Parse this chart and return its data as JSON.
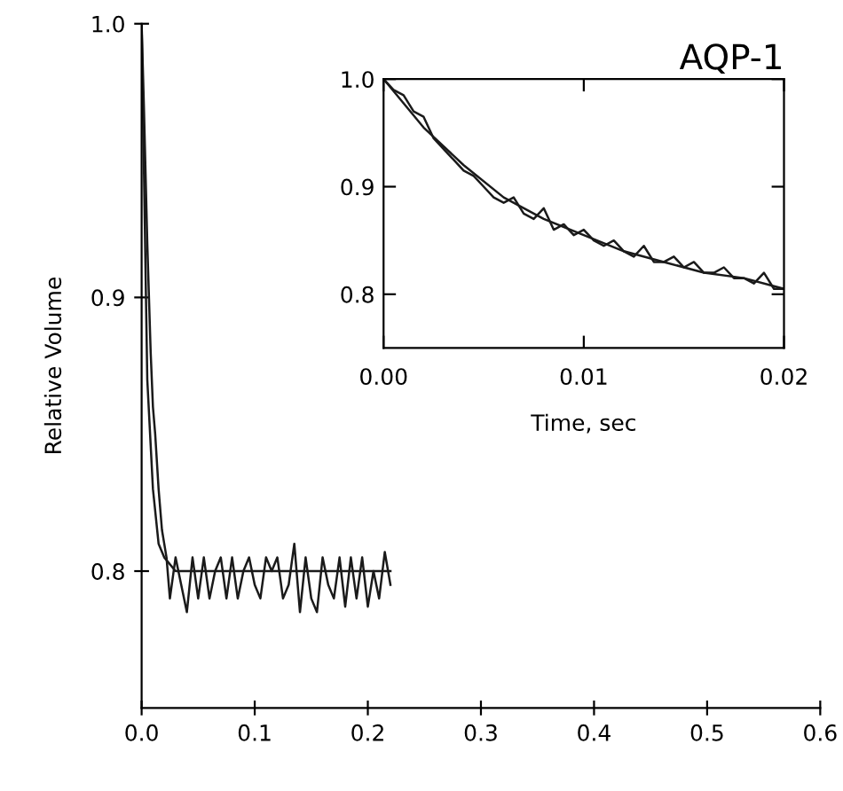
{
  "chart_data": [
    {
      "type": "line",
      "ylabel": "Relative Volume",
      "xlim": [
        0,
        0.6
      ],
      "ylim": [
        0.75,
        1.0
      ],
      "xticks": [
        {
          "value": 0,
          "label": "0.0"
        },
        0.1,
        0.2,
        0.3,
        0.4,
        0.5,
        0.6
      ],
      "yticks": [
        {
          "value": 0.8,
          "label": "0.8"
        },
        {
          "value": 0.9,
          "label": "0.9"
        },
        {
          "value": 1.0,
          "label": "1.0"
        }
      ],
      "grid": false,
      "legend": false,
      "series": [
        {
          "color": "#1a1a1a",
          "x": [
            0,
            0.002,
            0.005,
            0.008,
            0.01,
            0.012,
            0.015,
            0.018,
            0.02,
            0.022,
            0.025,
            0.03,
            0.035,
            0.04,
            0.045,
            0.05,
            0.055,
            0.06,
            0.065,
            0.07,
            0.075,
            0.08,
            0.085,
            0.09,
            0.095,
            0.1,
            0.105,
            0.11,
            0.115,
            0.12,
            0.125,
            0.13,
            0.135,
            0.14,
            0.145,
            0.15,
            0.155,
            0.16,
            0.165,
            0.17,
            0.175,
            0.18,
            0.185,
            0.19,
            0.195,
            0.2,
            0.205,
            0.21,
            0.215,
            0.22
          ],
          "values": [
            1.0,
            0.97,
            0.92,
            0.88,
            0.86,
            0.85,
            0.83,
            0.815,
            0.81,
            0.805,
            0.79,
            0.805,
            0.795,
            0.785,
            0.805,
            0.79,
            0.805,
            0.79,
            0.8,
            0.805,
            0.79,
            0.805,
            0.79,
            0.8,
            0.805,
            0.795,
            0.79,
            0.805,
            0.8,
            0.805,
            0.79,
            0.795,
            0.81,
            0.785,
            0.805,
            0.79,
            0.785,
            0.805,
            0.795,
            0.79,
            0.805,
            0.787,
            0.805,
            0.79,
            0.805,
            0.787,
            0.8,
            0.79,
            0.807,
            0.795
          ]
        },
        {
          "color": "#1a1a1a",
          "x": [
            0,
            0.005,
            0.01,
            0.015,
            0.02,
            0.03,
            0.05,
            0.22
          ],
          "values": [
            1.0,
            0.87,
            0.83,
            0.81,
            0.805,
            0.8,
            0.8,
            0.8
          ]
        }
      ]
    },
    {
      "type": "line",
      "title": "AQP-1",
      "xlabel": "Time, sec",
      "xlim": [
        0,
        0.02
      ],
      "ylim": [
        0.75,
        1.0
      ],
      "xticks": [
        {
          "value": 0,
          "label": "0.00"
        },
        0.01,
        0.02
      ],
      "yticks": [
        {
          "value": 0.8,
          "label": "0.8"
        },
        {
          "value": 0.9,
          "label": "0.9"
        },
        {
          "value": 1.0,
          "label": "1.0"
        }
      ],
      "grid": false,
      "legend": false,
      "series": [
        {
          "color": "#1a1a1a",
          "x": [
            0,
            0.0005,
            0.001,
            0.0015,
            0.002,
            0.0025,
            0.003,
            0.0035,
            0.004,
            0.0045,
            0.005,
            0.0055,
            0.006,
            0.0065,
            0.007,
            0.0075,
            0.008,
            0.0085,
            0.009,
            0.0095,
            0.01,
            0.0105,
            0.011,
            0.0115,
            0.012,
            0.0125,
            0.013,
            0.0135,
            0.014,
            0.0145,
            0.015,
            0.0155,
            0.016,
            0.0165,
            0.017,
            0.0175,
            0.018,
            0.0185,
            0.019,
            0.0195,
            0.02
          ],
          "values": [
            1.0,
            0.99,
            0.985,
            0.97,
            0.965,
            0.945,
            0.935,
            0.925,
            0.915,
            0.91,
            0.9,
            0.89,
            0.885,
            0.89,
            0.875,
            0.87,
            0.88,
            0.86,
            0.865,
            0.855,
            0.86,
            0.85,
            0.845,
            0.85,
            0.84,
            0.835,
            0.845,
            0.83,
            0.83,
            0.835,
            0.825,
            0.83,
            0.82,
            0.82,
            0.825,
            0.815,
            0.815,
            0.81,
            0.82,
            0.805,
            0.805
          ]
        },
        {
          "color": "#1a1a1a",
          "x": [
            0,
            0.002,
            0.004,
            0.006,
            0.008,
            0.01,
            0.012,
            0.014,
            0.016,
            0.018,
            0.02
          ],
          "values": [
            1.0,
            0.955,
            0.92,
            0.89,
            0.87,
            0.855,
            0.84,
            0.83,
            0.82,
            0.815,
            0.805
          ]
        }
      ]
    }
  ]
}
